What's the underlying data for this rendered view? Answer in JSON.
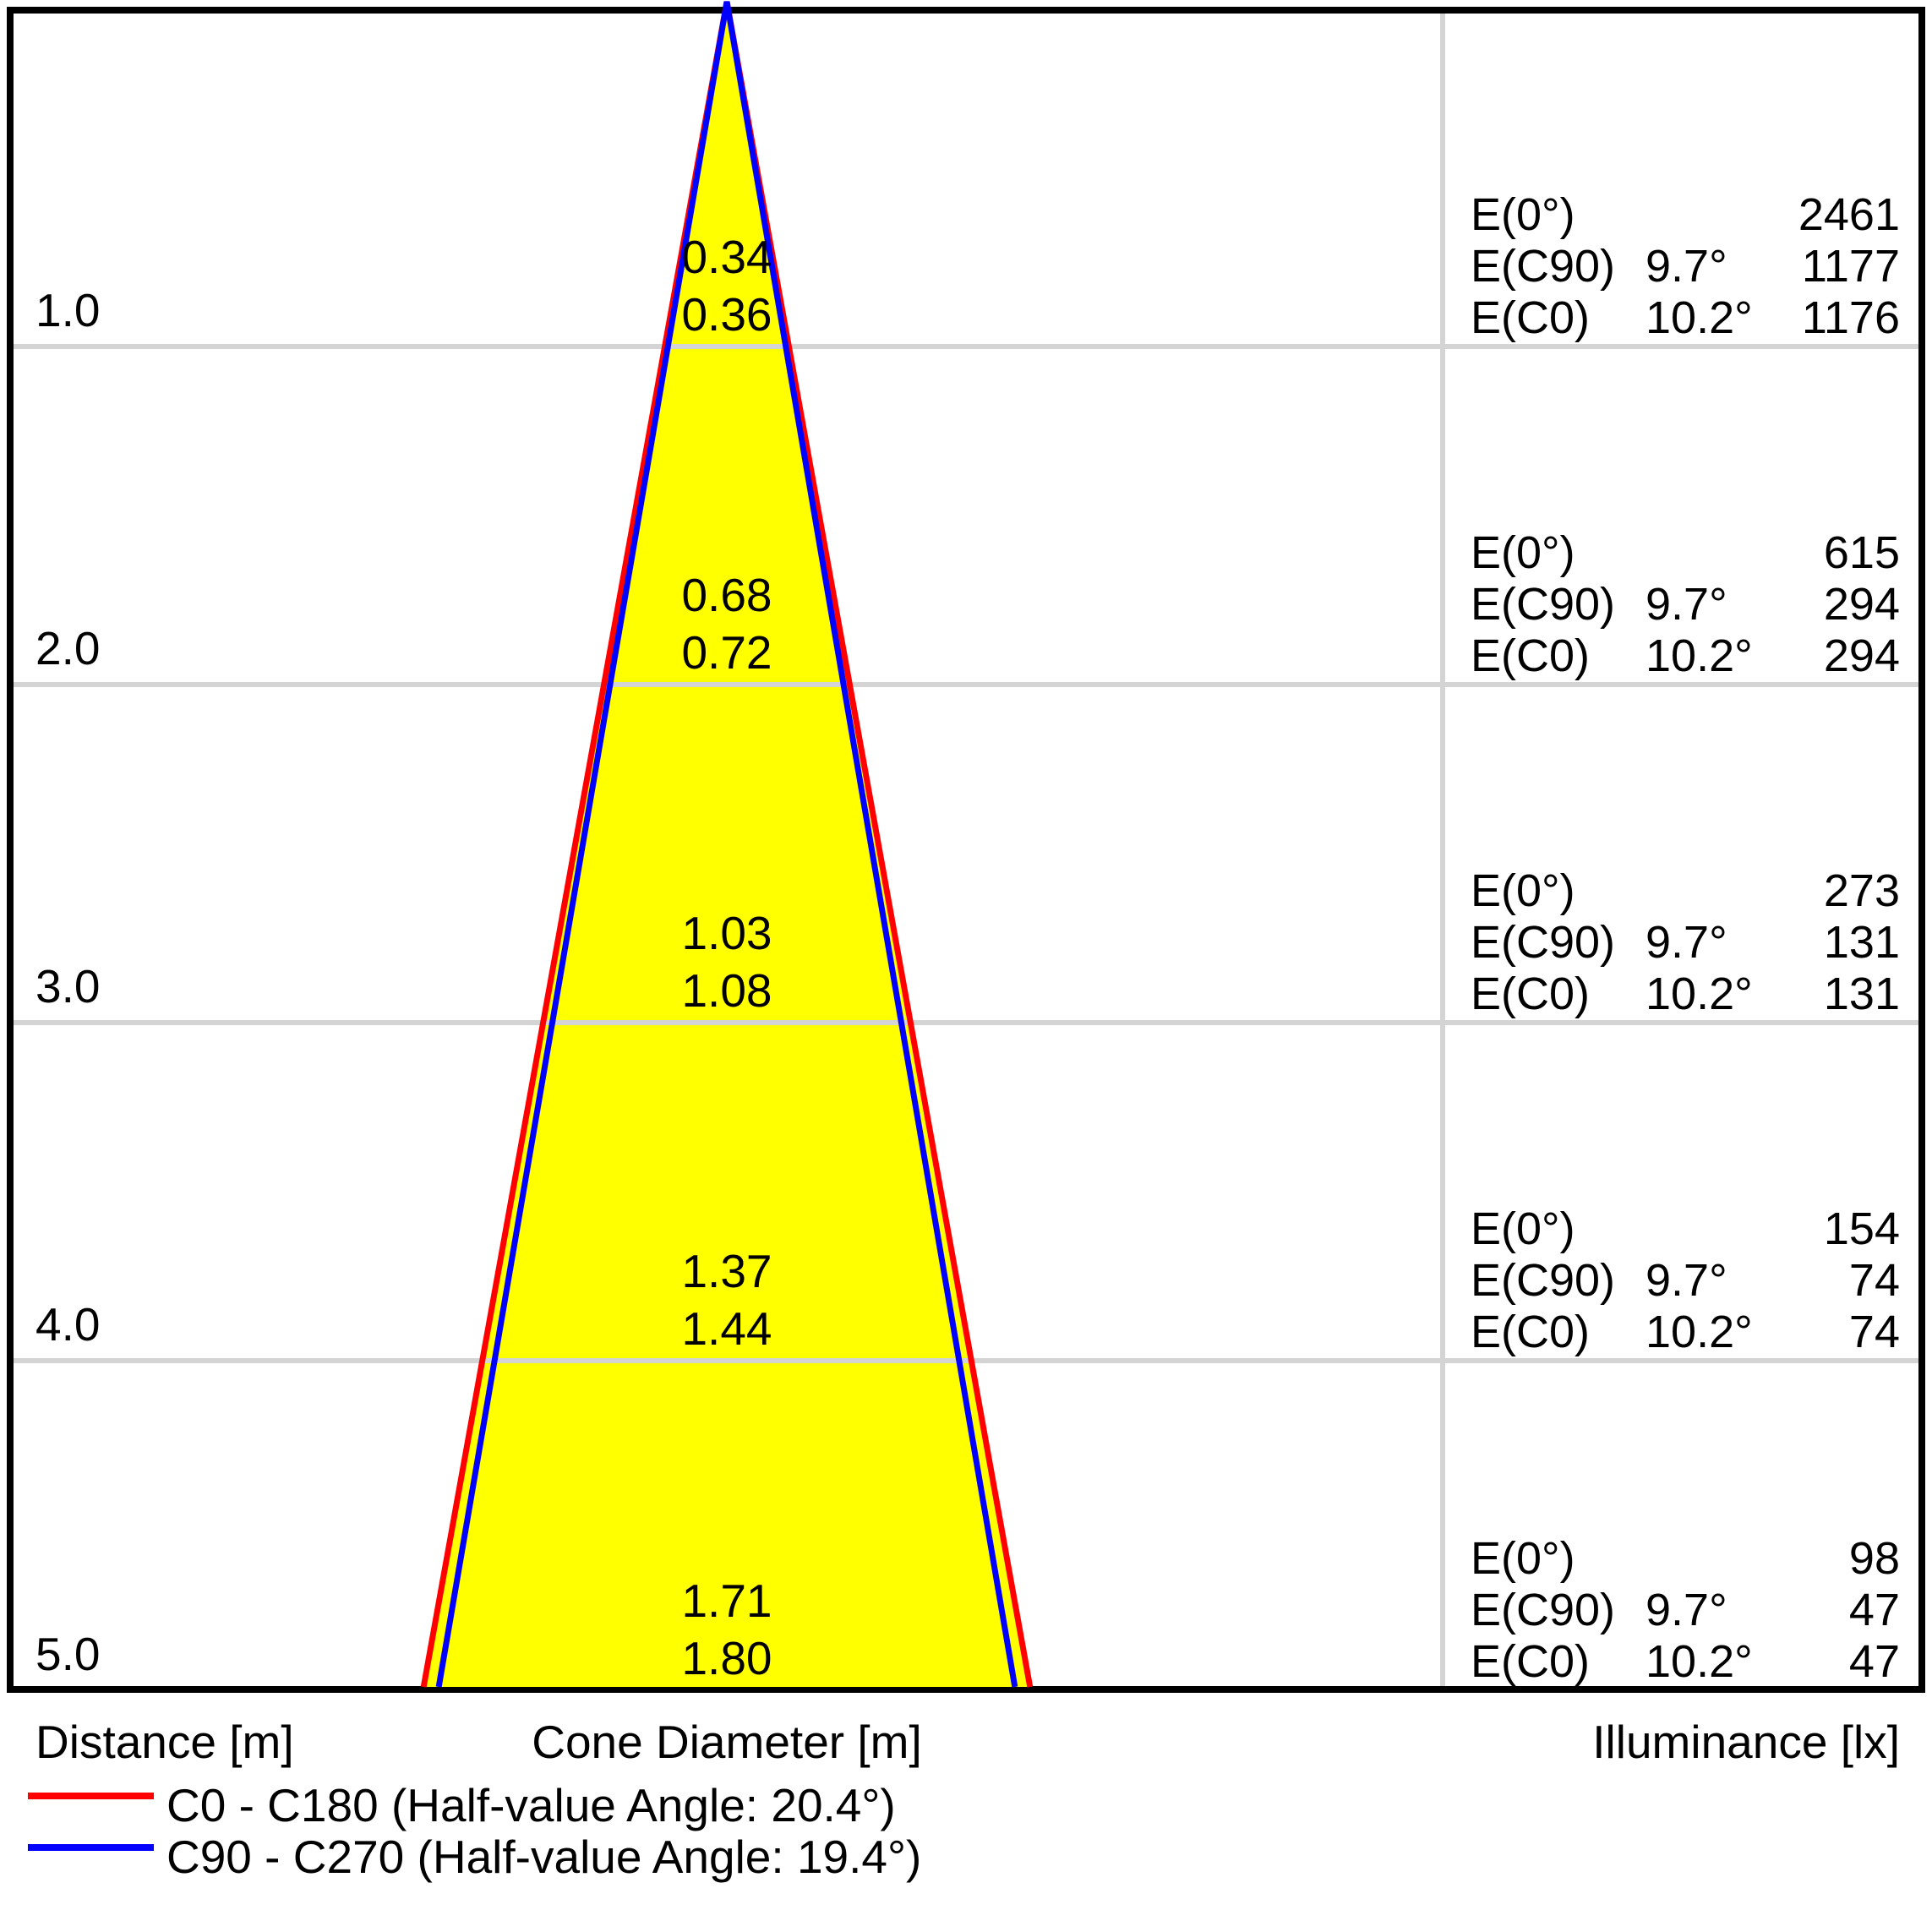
{
  "colors": {
    "cone_fill": "#ffff00",
    "grid": "#d4d4d4",
    "border": "#000000",
    "c0_c180": "#ff0000",
    "c90_c270": "#0000ff",
    "text": "#000000"
  },
  "axis": {
    "distance": "Distance [m]",
    "cone_diameter": "Cone Diameter [m]",
    "illuminance": "Illuminance [lx]"
  },
  "legend": [
    {
      "label": "C0 - C180 (Half-value Angle: 20.4°)",
      "color": "#ff0000"
    },
    {
      "label": "C90 - C270 (Half-value Angle: 19.4°)",
      "color": "#0000ff"
    }
  ],
  "rows": [
    {
      "distance": "1.0",
      "cone_diameters": {
        "c90": "0.34",
        "c0": "0.36"
      },
      "illuminance": [
        {
          "label": "E(0°)",
          "angle": "",
          "value": "2461"
        },
        {
          "label": "E(C90)",
          "angle": "9.7°",
          "value": "1177"
        },
        {
          "label": "E(C0)",
          "angle": "10.2°",
          "value": "1176"
        }
      ]
    },
    {
      "distance": "2.0",
      "cone_diameters": {
        "c90": "0.68",
        "c0": "0.72"
      },
      "illuminance": [
        {
          "label": "E(0°)",
          "angle": "",
          "value": "615"
        },
        {
          "label": "E(C90)",
          "angle": "9.7°",
          "value": "294"
        },
        {
          "label": "E(C0)",
          "angle": "10.2°",
          "value": "294"
        }
      ]
    },
    {
      "distance": "3.0",
      "cone_diameters": {
        "c90": "1.03",
        "c0": "1.08"
      },
      "illuminance": [
        {
          "label": "E(0°)",
          "angle": "",
          "value": "273"
        },
        {
          "label": "E(C90)",
          "angle": "9.7°",
          "value": "131"
        },
        {
          "label": "E(C0)",
          "angle": "10.2°",
          "value": "131"
        }
      ]
    },
    {
      "distance": "4.0",
      "cone_diameters": {
        "c90": "1.37",
        "c0": "1.44"
      },
      "illuminance": [
        {
          "label": "E(0°)",
          "angle": "",
          "value": "154"
        },
        {
          "label": "E(C90)",
          "angle": "9.7°",
          "value": "74"
        },
        {
          "label": "E(C0)",
          "angle": "10.2°",
          "value": "74"
        }
      ]
    },
    {
      "distance": "5.0",
      "cone_diameters": {
        "c90": "1.71",
        "c0": "1.80"
      },
      "illuminance": [
        {
          "label": "E(0°)",
          "angle": "",
          "value": "98"
        },
        {
          "label": "E(C90)",
          "angle": "9.7°",
          "value": "47"
        },
        {
          "label": "E(C0)",
          "angle": "10.2°",
          "value": "47"
        }
      ]
    }
  ],
  "chart_data": {
    "type": "light-cone-diagram",
    "title": "",
    "xlabel": "Cone Diameter [m]",
    "ylabel": "Distance [m]",
    "distances_m": [
      1.0,
      2.0,
      3.0,
      4.0,
      5.0
    ],
    "grid": true,
    "series": [
      {
        "name": "C0 - C180",
        "half_value_angle_deg": 20.4,
        "beam_half_angle_deg": 10.2,
        "color": "#ff0000",
        "cone_diameters_m": [
          0.36,
          0.72,
          1.08,
          1.44,
          1.8
        ],
        "illuminance_lx": [
          1176,
          294,
          131,
          74,
          47
        ]
      },
      {
        "name": "C90 - C270",
        "half_value_angle_deg": 19.4,
        "beam_half_angle_deg": 9.7,
        "color": "#0000ff",
        "cone_diameters_m": [
          0.34,
          0.68,
          1.03,
          1.37,
          1.71
        ],
        "illuminance_lx": [
          1177,
          294,
          131,
          74,
          47
        ]
      }
    ],
    "center_beam_illuminance_lx": [
      2461,
      615,
      273,
      154,
      98
    ]
  }
}
